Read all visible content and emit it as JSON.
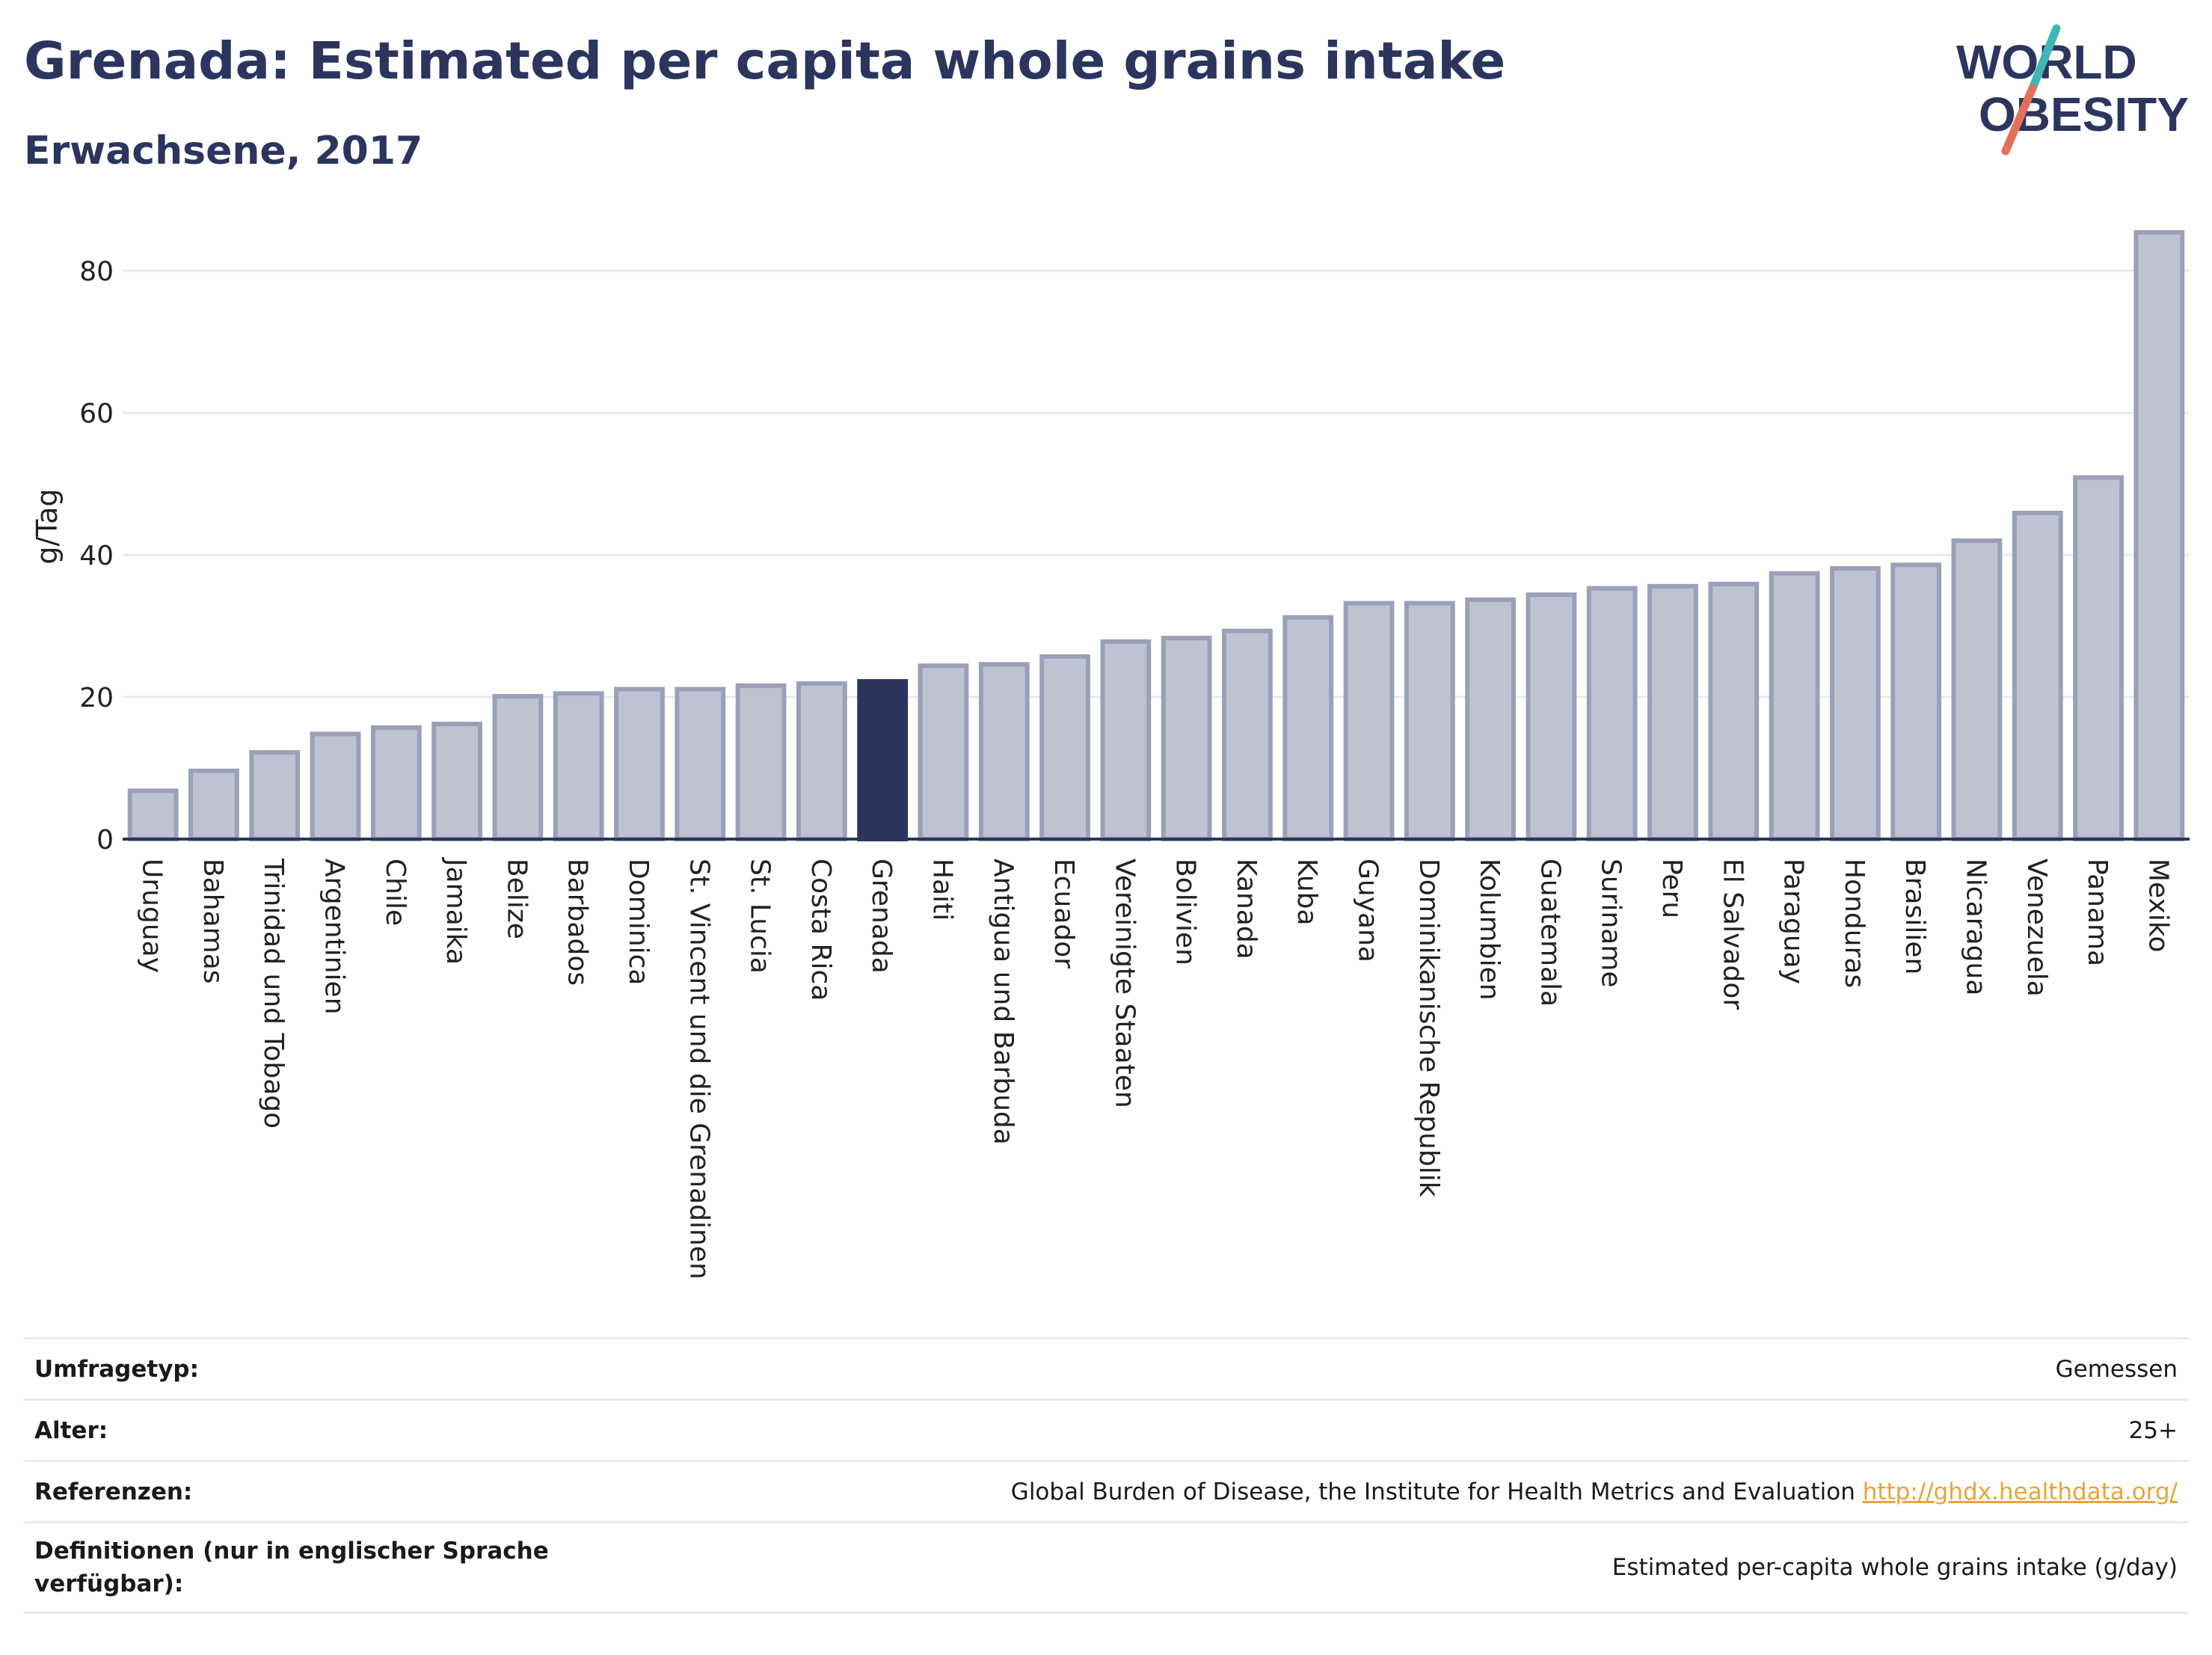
{
  "header": {
    "title": "Grenada: Estimated per capita whole grains intake",
    "subtitle": "Erwachsene, 2017"
  },
  "logo": {
    "line1": "WORLD",
    "line2": "OBESITY",
    "slash_teal": "#3fb7b5",
    "slash_coral": "#e4705a"
  },
  "colors": {
    "text": "#2b355e",
    "highlight_bar": "#2b355e",
    "default_bar": "#bfc2d0",
    "default_bar_border": "#9aa0b8",
    "grid": "#e6eaef",
    "link": "#e8a33d"
  },
  "chart_data": {
    "type": "bar",
    "title": "",
    "xlabel": "",
    "ylabel": "g/Tag",
    "ylim": [
      0,
      88
    ],
    "yticks": [
      0,
      20,
      40,
      60,
      80
    ],
    "grid": true,
    "highlight": "Grenada",
    "categories": [
      "Uruguay",
      "Bahamas",
      "Trinidad und Tobago",
      "Argentinien",
      "Chile",
      "Jamaika",
      "Belize",
      "Barbados",
      "Dominica",
      "St. Vincent und die Grenadinen",
      "St. Lucia",
      "Costa Rica",
      "Grenada",
      "Haiti",
      "Antigua und Barbuda",
      "Ecuador",
      "Vereinigte Staaten",
      "Bolivien",
      "Kanada",
      "Kuba",
      "Guyana",
      "Dominikanische Republik",
      "Kolumbien",
      "Guatemala",
      "Suriname",
      "Peru",
      "El Salvador",
      "Paraguay",
      "Honduras",
      "Brasilien",
      "Nicaragua",
      "Venezuela",
      "Panama",
      "Mexiko"
    ],
    "values": [
      6.8,
      9.6,
      12.2,
      14.8,
      15.7,
      16.2,
      20.1,
      20.5,
      21.1,
      21.1,
      21.6,
      21.9,
      22.2,
      24.4,
      24.6,
      25.7,
      27.8,
      28.3,
      29.3,
      31.2,
      33.2,
      33.2,
      33.7,
      34.4,
      35.3,
      35.6,
      35.9,
      37.4,
      38.1,
      38.6,
      42.0,
      45.9,
      50.9,
      85.4
    ]
  },
  "info": [
    {
      "label": "Umfragetyp:",
      "value": "Gemessen"
    },
    {
      "label": "Alter:",
      "value": "25+"
    },
    {
      "label": "Referenzen:",
      "value": "Global Burden of Disease, the Institute for Health Metrics and Evaluation",
      "link": "http://ghdx.healthdata.org/"
    },
    {
      "label": "Definitionen (nur in englischer Sprache verfügbar):",
      "value": "Estimated per-capita whole grains intake (g/day)"
    }
  ]
}
